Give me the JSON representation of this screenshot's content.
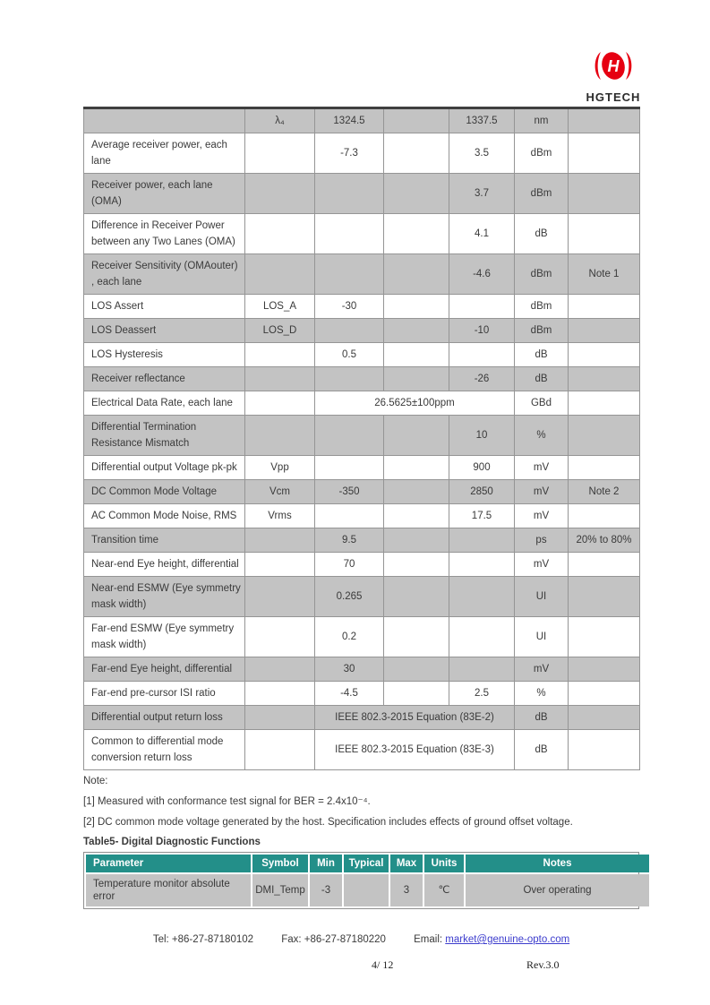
{
  "logo": {
    "brand": "HGTECH"
  },
  "spec_table": {
    "rows": [
      {
        "param": "",
        "symbol": "λ₄",
        "min": "1324.5",
        "typical": "",
        "max": "1337.5",
        "units": "nm",
        "notes": ""
      },
      {
        "param": "Average receiver power, each lane",
        "symbol": "",
        "min": "-7.3",
        "typical": "",
        "max": "3.5",
        "units": "dBm",
        "notes": ""
      },
      {
        "param": "Receiver power, each lane (OMA)",
        "symbol": "",
        "min": "",
        "typical": "",
        "max": "3.7",
        "units": "dBm",
        "notes": ""
      },
      {
        "param": "Difference in Receiver Power between any Two Lanes (OMA)",
        "symbol": "",
        "min": "",
        "typical": "",
        "max": "4.1",
        "units": "dB",
        "notes": ""
      },
      {
        "param": "Receiver Sensitivity (OMAouter) , each lane",
        "symbol": "",
        "min": "",
        "typical": "",
        "max": "-4.6",
        "units": "dBm",
        "notes": "Note 1"
      },
      {
        "param": "LOS Assert",
        "symbol": "LOS_A",
        "min": "-30",
        "typical": "",
        "max": "",
        "units": "dBm",
        "notes": ""
      },
      {
        "param": "LOS Deassert",
        "symbol": "LOS_D",
        "min": "",
        "typical": "",
        "max": "-10",
        "units": "dBm",
        "notes": ""
      },
      {
        "param": "LOS Hysteresis",
        "symbol": "",
        "min": "0.5",
        "typical": "",
        "max": "",
        "units": "dB",
        "notes": ""
      },
      {
        "param": "Receiver reflectance",
        "symbol": "",
        "min": "",
        "typical": "",
        "max": "-26",
        "units": "dB",
        "notes": ""
      },
      {
        "param": "Electrical Data Rate, each lane",
        "symbol": "",
        "span_value": "26.5625±100ppm",
        "units": "GBd",
        "notes": ""
      },
      {
        "param": "Differential Termination Resistance Mismatch",
        "symbol": "",
        "min": "",
        "typical": "",
        "max": "10",
        "units": "%",
        "notes": ""
      },
      {
        "param": "Differential output Voltage pk-pk",
        "symbol": "Vpp",
        "min": "",
        "typical": "",
        "max": "900",
        "units": "mV",
        "notes": ""
      },
      {
        "param": "DC Common Mode Voltage",
        "symbol": "Vcm",
        "min": "-350",
        "typical": "",
        "max": "2850",
        "units": "mV",
        "notes": "Note 2"
      },
      {
        "param": "AC Common Mode Noise, RMS",
        "symbol": "Vrms",
        "min": "",
        "typical": "",
        "max": "17.5",
        "units": "mV",
        "notes": ""
      },
      {
        "param": "Transition time",
        "symbol": "",
        "min": "9.5",
        "typical": "",
        "max": "",
        "units": "ps",
        "notes": "20% to 80%"
      },
      {
        "param": "Near-end Eye height, differential",
        "symbol": "",
        "min": "70",
        "typical": "",
        "max": "",
        "units": "mV",
        "notes": ""
      },
      {
        "param": "Near-end ESMW (Eye symmetry mask width)",
        "symbol": "",
        "min": "0.265",
        "typical": "",
        "max": "",
        "units": "UI",
        "notes": ""
      },
      {
        "param": "Far-end ESMW (Eye symmetry mask width)",
        "symbol": "",
        "min": "0.2",
        "typical": "",
        "max": "",
        "units": "UI",
        "notes": ""
      },
      {
        "param": "Far-end Eye height, differential",
        "symbol": "",
        "min": "30",
        "typical": "",
        "max": "",
        "units": "mV",
        "notes": ""
      },
      {
        "param": "Far-end pre-cursor ISI ratio",
        "symbol": "",
        "min": "-4.5",
        "typical": "",
        "max": "2.5",
        "units": "%",
        "notes": ""
      },
      {
        "param": "Differential output return loss",
        "symbol": "",
        "span_value": "IEEE 802.3-2015 Equation (83E-2)",
        "units": "dB",
        "notes": ""
      },
      {
        "param": "Common to differential mode conversion return loss",
        "symbol": "",
        "span_value": "IEEE 802.3-2015 Equation (83E-3)",
        "units": "dB",
        "notes": ""
      }
    ]
  },
  "notes": {
    "label": "Note:",
    "items": [
      "[1] Measured with conformance test signal for BER = 2.4x10⁻⁴.",
      "[2] DC common mode voltage generated by the host. Specification includes effects of ground offset voltage."
    ]
  },
  "table5": {
    "title": "Table5- Digital Diagnostic Functions",
    "headers": [
      "Parameter",
      "Symbol",
      "Min",
      "Typical",
      "Max",
      "Units",
      "Notes"
    ],
    "rows": [
      {
        "param": "Temperature monitor absolute error",
        "symbol": "DMI_Temp",
        "min": "-3",
        "typical": "",
        "max": "3",
        "units": "℃",
        "notes": "Over operating"
      }
    ]
  },
  "footer": {
    "tel": "Tel: +86-27-87180102",
    "fax": "Fax: +86-27-87180220",
    "email_label": "Email:",
    "email": "market@genuine-opto.com",
    "page": "4/ 12",
    "rev": "Rev.3.0"
  },
  "colors": {
    "row_shaded": "#c3c3c3",
    "grid_line": "#959595",
    "table5_header_teal": "#238f89",
    "logo_red": "#e60012",
    "link_blue": "#3c3ccd"
  }
}
